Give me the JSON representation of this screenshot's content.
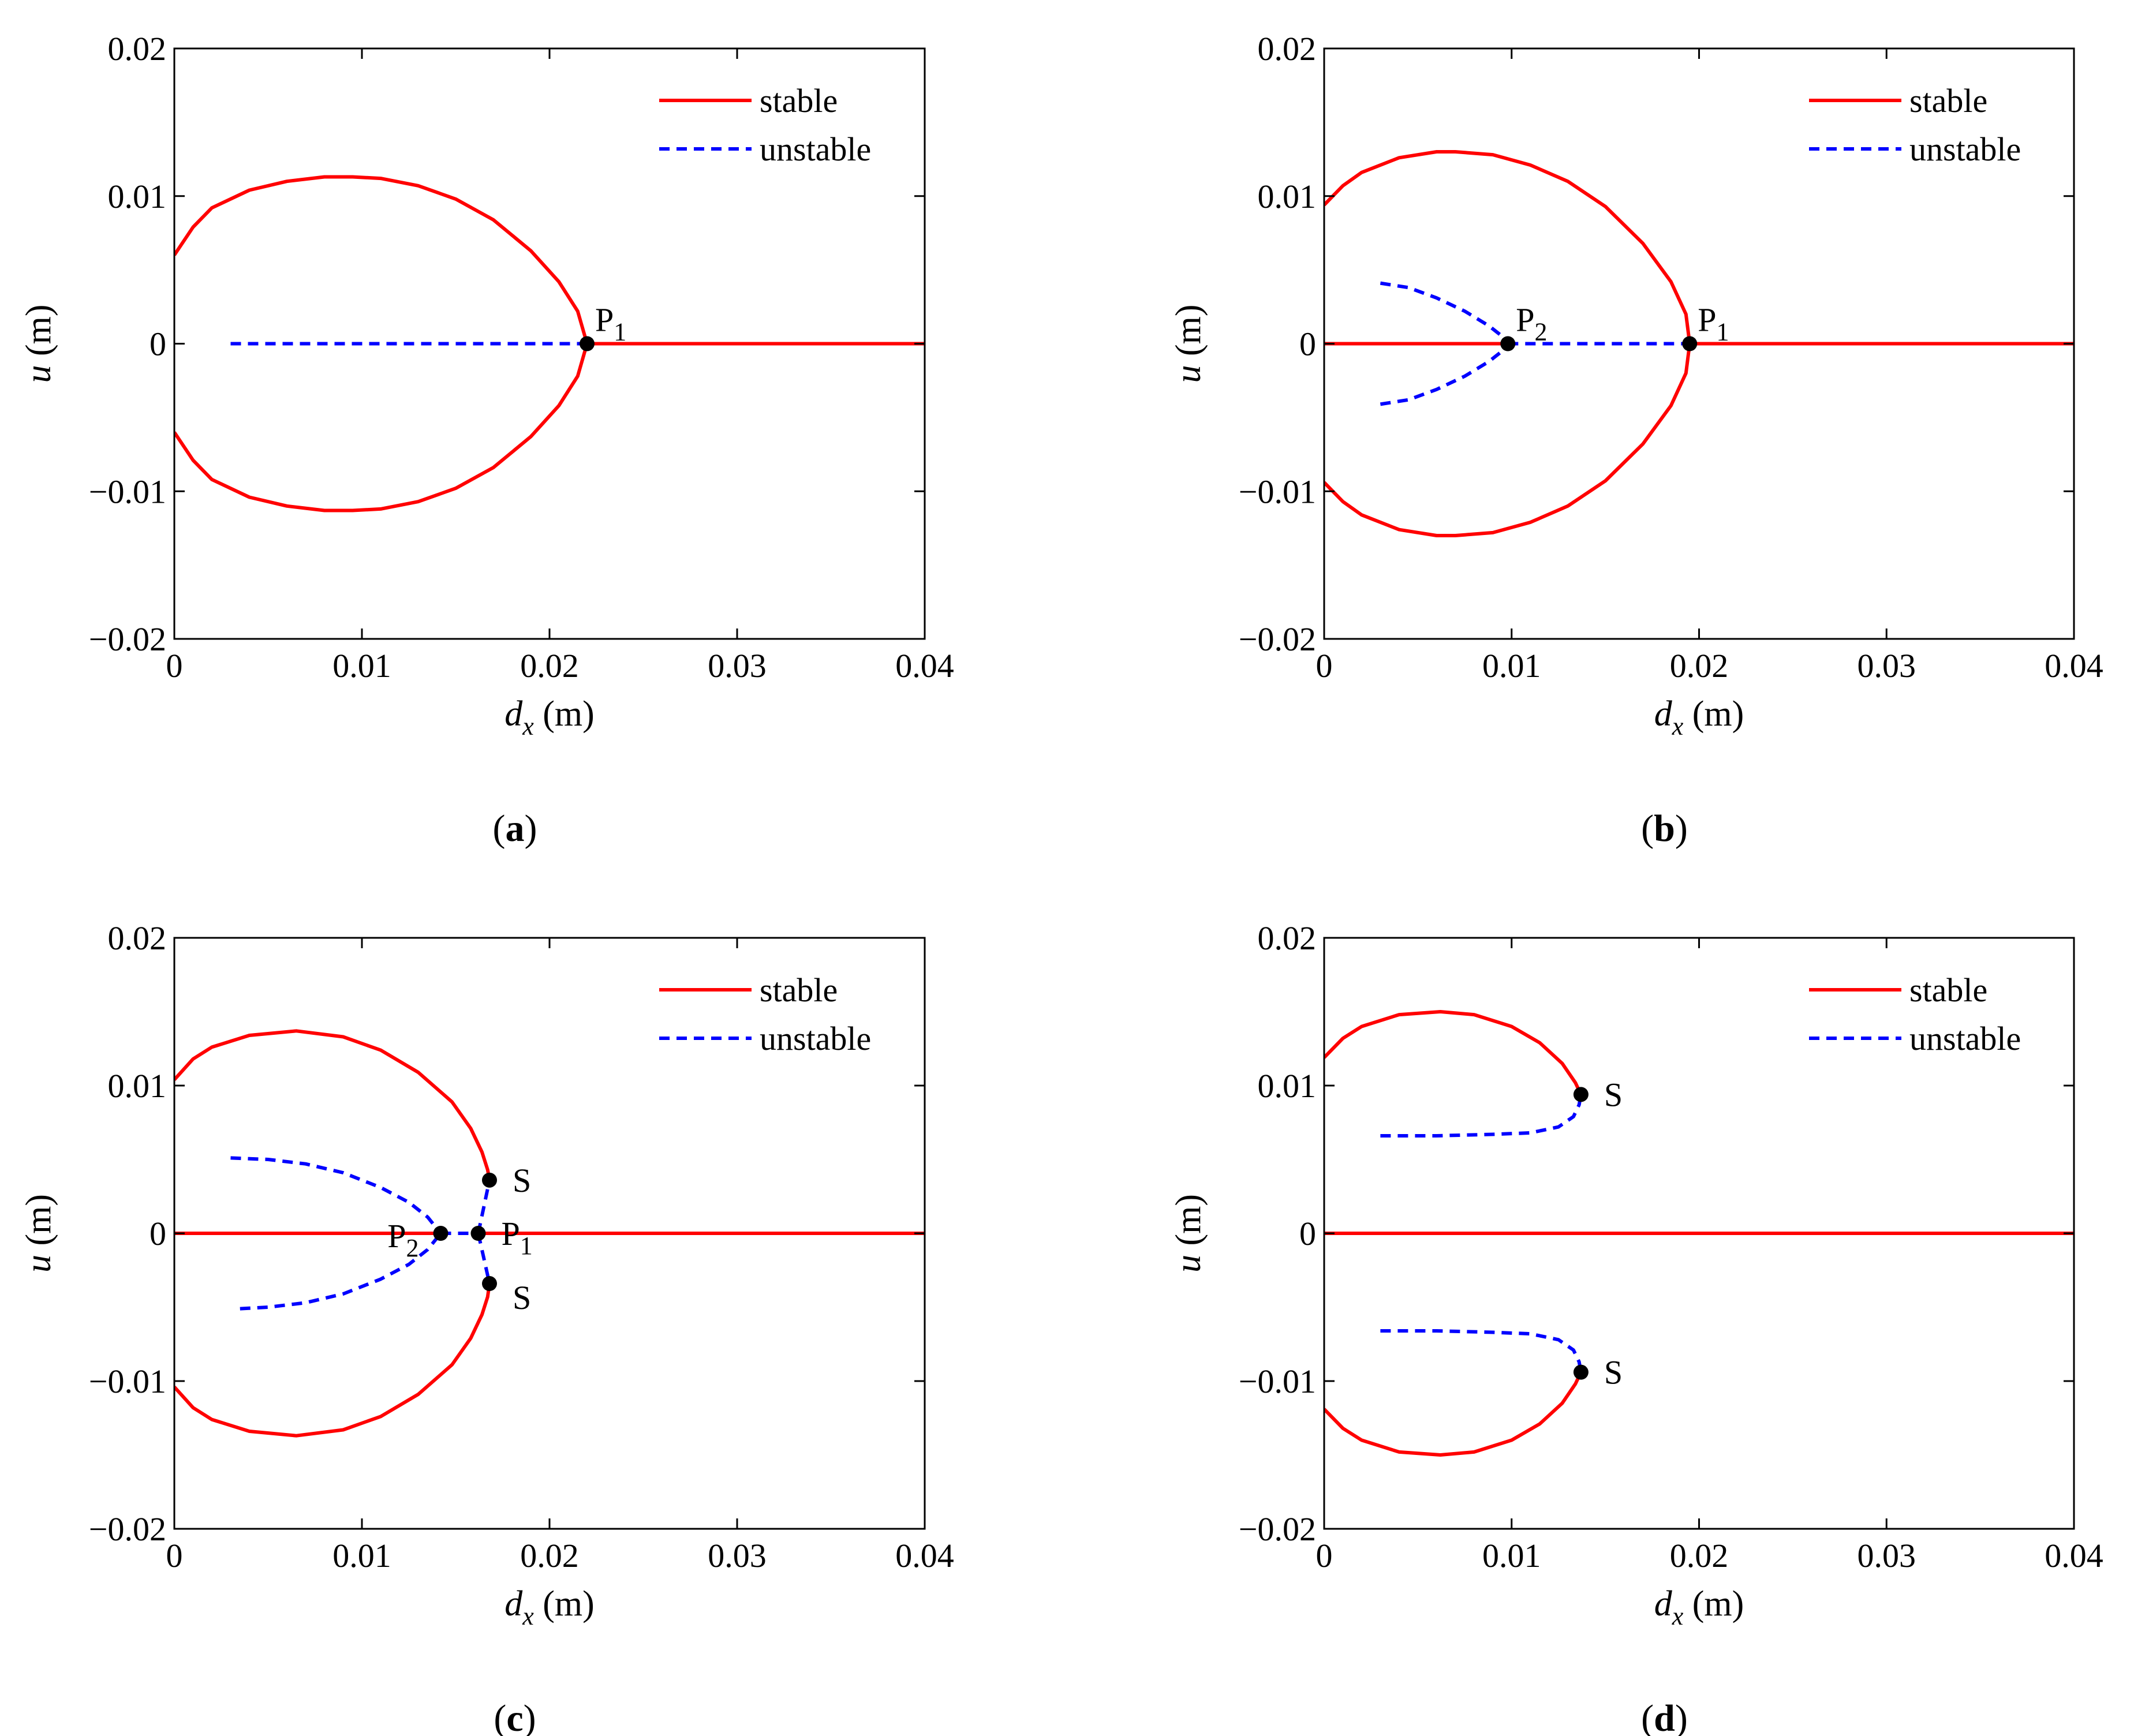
{
  "colors": {
    "stable": "#ff0000",
    "unstable": "#0000ff",
    "point": "#000000"
  },
  "chart_data": [
    {
      "type": "line",
      "panel_label": "a",
      "xlabel_var": "d",
      "xlabel_sub": "x",
      "xlabel_unit": " (m)",
      "ylabel_var": "u",
      "ylabel_unit": " (m)",
      "xlim": [
        0,
        0.04
      ],
      "ylim": [
        -0.02,
        0.02
      ],
      "xticks": [
        0,
        0.01,
        0.02,
        0.03,
        0.04
      ],
      "xtick_labels": [
        "0",
        "0.01",
        "0.02",
        "0.03",
        "0.04"
      ],
      "yticks": [
        -0.02,
        -0.01,
        0,
        0.01,
        0.02
      ],
      "ytick_labels": [
        "−0.02",
        "−0.01",
        "0",
        "0.01",
        "0.02"
      ],
      "legend": [
        {
          "label": "stable",
          "style": "stable"
        },
        {
          "label": "unstable",
          "style": "unstable"
        }
      ],
      "series": [
        {
          "name": "stable",
          "style": "stable",
          "x": [
            0,
            0.001,
            0.002,
            0.004,
            0.006,
            0.008,
            0.0095,
            0.011,
            0.013,
            0.015,
            0.017,
            0.019,
            0.0205,
            0.0215,
            0.022
          ],
          "y": [
            0.006,
            0.0079,
            0.0092,
            0.0104,
            0.011,
            0.0113,
            0.0113,
            0.0112,
            0.0107,
            0.0098,
            0.0084,
            0.0063,
            0.0042,
            0.0022,
            0
          ]
        },
        {
          "name": "stable",
          "style": "stable",
          "x": [
            0,
            0.001,
            0.002,
            0.004,
            0.006,
            0.008,
            0.0095,
            0.011,
            0.013,
            0.015,
            0.017,
            0.019,
            0.0205,
            0.0215,
            0.022
          ],
          "y": [
            -0.006,
            -0.0079,
            -0.0092,
            -0.0104,
            -0.011,
            -0.0113,
            -0.0113,
            -0.0112,
            -0.0107,
            -0.0098,
            -0.0084,
            -0.0063,
            -0.0042,
            -0.0022,
            0
          ]
        },
        {
          "name": "stable",
          "style": "stable",
          "x": [
            0.022,
            0.04
          ],
          "y": [
            0,
            0
          ]
        },
        {
          "name": "unstable",
          "style": "unstable",
          "x": [
            0.003,
            0.022
          ],
          "y": [
            0,
            0
          ]
        }
      ],
      "points": [
        {
          "x": 0.022,
          "y": 0,
          "label": "P",
          "sub": "1",
          "pos": "above-right"
        }
      ]
    },
    {
      "type": "line",
      "panel_label": "b",
      "xlabel_var": "d",
      "xlabel_sub": "x",
      "xlabel_unit": " (m)",
      "ylabel_var": "u",
      "ylabel_unit": " (m)",
      "xlim": [
        0,
        0.04
      ],
      "ylim": [
        -0.02,
        0.02
      ],
      "xticks": [
        0,
        0.01,
        0.02,
        0.03,
        0.04
      ],
      "xtick_labels": [
        "0",
        "0.01",
        "0.02",
        "0.03",
        "0.04"
      ],
      "yticks": [
        -0.02,
        -0.01,
        0,
        0.01,
        0.02
      ],
      "ytick_labels": [
        "−0.02",
        "−0.01",
        "0",
        "0.01",
        "0.02"
      ],
      "legend": [
        {
          "label": "stable",
          "style": "stable"
        },
        {
          "label": "unstable",
          "style": "unstable"
        }
      ],
      "series": [
        {
          "name": "stable",
          "style": "stable",
          "x": [
            0,
            0.001,
            0.002,
            0.004,
            0.006,
            0.007,
            0.009,
            0.011,
            0.013,
            0.015,
            0.017,
            0.0185,
            0.0193,
            0.0195
          ],
          "y": [
            0.0094,
            0.0107,
            0.0116,
            0.0126,
            0.013,
            0.013,
            0.0128,
            0.0121,
            0.011,
            0.0093,
            0.0068,
            0.0042,
            0.002,
            0
          ]
        },
        {
          "name": "stable",
          "style": "stable",
          "x": [
            0,
            0.001,
            0.002,
            0.004,
            0.006,
            0.007,
            0.009,
            0.011,
            0.013,
            0.015,
            0.017,
            0.0185,
            0.0193,
            0.0195
          ],
          "y": [
            -0.0094,
            -0.0107,
            -0.0116,
            -0.0126,
            -0.013,
            -0.013,
            -0.0128,
            -0.0121,
            -0.011,
            -0.0093,
            -0.0068,
            -0.0042,
            -0.002,
            0
          ]
        },
        {
          "name": "stable",
          "style": "stable",
          "x": [
            0,
            0.0098
          ],
          "y": [
            0,
            0
          ]
        },
        {
          "name": "stable",
          "style": "stable",
          "x": [
            0.0195,
            0.04
          ],
          "y": [
            0,
            0
          ]
        },
        {
          "name": "unstable",
          "style": "unstable",
          "x": [
            0.0098,
            0.0195
          ],
          "y": [
            0,
            0
          ]
        },
        {
          "name": "unstable",
          "style": "unstable",
          "x": [
            0.003,
            0.0045,
            0.006,
            0.0075,
            0.0088,
            0.0095,
            0.0098
          ],
          "y": [
            0.0041,
            0.0038,
            0.0031,
            0.0022,
            0.0012,
            0.0005,
            0
          ]
        },
        {
          "name": "unstable",
          "style": "unstable",
          "x": [
            0.003,
            0.0045,
            0.006,
            0.0075,
            0.0088,
            0.0095,
            0.0098
          ],
          "y": [
            -0.0041,
            -0.0038,
            -0.0031,
            -0.0022,
            -0.0012,
            -0.0005,
            0
          ]
        }
      ],
      "points": [
        {
          "x": 0.0098,
          "y": 0,
          "label": "P",
          "sub": "2",
          "pos": "above-right"
        },
        {
          "x": 0.0195,
          "y": 0,
          "label": "P",
          "sub": "1",
          "pos": "above-right"
        }
      ]
    },
    {
      "type": "line",
      "panel_label": "c",
      "xlabel_var": "d",
      "xlabel_sub": "x",
      "xlabel_unit": " (m)",
      "ylabel_var": "u",
      "ylabel_unit": " (m)",
      "xlim": [
        0,
        0.04
      ],
      "ylim": [
        -0.02,
        0.02
      ],
      "xticks": [
        0,
        0.01,
        0.02,
        0.03,
        0.04
      ],
      "xtick_labels": [
        "0",
        "0.01",
        "0.02",
        "0.03",
        "0.04"
      ],
      "yticks": [
        -0.02,
        -0.01,
        0,
        0.01,
        0.02
      ],
      "ytick_labels": [
        "−0.02",
        "−0.01",
        "0",
        "0.01",
        "0.02"
      ],
      "legend": [
        {
          "label": "stable",
          "style": "stable"
        },
        {
          "label": "unstable",
          "style": "unstable"
        }
      ],
      "series": [
        {
          "name": "stable",
          "style": "stable",
          "x": [
            0,
            0.001,
            0.002,
            0.004,
            0.0065,
            0.009,
            0.011,
            0.013,
            0.0148,
            0.0158,
            0.0164,
            0.0167,
            0.0168
          ],
          "y": [
            0.0104,
            0.0118,
            0.0126,
            0.0134,
            0.0137,
            0.0133,
            0.0124,
            0.0109,
            0.0089,
            0.0071,
            0.0055,
            0.0043,
            0.0036
          ]
        },
        {
          "name": "stable",
          "style": "stable",
          "x": [
            0,
            0.001,
            0.002,
            0.004,
            0.0065,
            0.009,
            0.011,
            0.013,
            0.0148,
            0.0158,
            0.0164,
            0.0167,
            0.0168
          ],
          "y": [
            -0.0104,
            -0.0118,
            -0.0126,
            -0.0134,
            -0.0137,
            -0.0133,
            -0.0124,
            -0.0109,
            -0.0089,
            -0.0071,
            -0.0055,
            -0.0043,
            -0.0034
          ]
        },
        {
          "name": "stable",
          "style": "stable",
          "x": [
            0,
            0.0142
          ],
          "y": [
            0,
            0
          ]
        },
        {
          "name": "stable",
          "style": "stable",
          "x": [
            0.0162,
            0.04
          ],
          "y": [
            0,
            0
          ]
        },
        {
          "name": "unstable",
          "style": "unstable",
          "x": [
            0.0142,
            0.0162
          ],
          "y": [
            0,
            0
          ]
        },
        {
          "name": "unstable",
          "style": "unstable",
          "x": [
            0.0162,
            0.0165,
            0.0168
          ],
          "y": [
            0,
            0.0018,
            0.0036
          ]
        },
        {
          "name": "unstable",
          "style": "unstable",
          "x": [
            0.0162,
            0.0165,
            0.0168
          ],
          "y": [
            0,
            -0.0017,
            -0.0034
          ]
        },
        {
          "name": "unstable",
          "style": "unstable",
          "x": [
            0.003,
            0.005,
            0.007,
            0.009,
            0.011,
            0.0125,
            0.0135,
            0.0142
          ],
          "y": [
            0.0051,
            0.005,
            0.0047,
            0.0041,
            0.0031,
            0.0021,
            0.0011,
            0
          ]
        },
        {
          "name": "unstable",
          "style": "unstable",
          "x": [
            0.0035,
            0.005,
            0.007,
            0.009,
            0.011,
            0.0125,
            0.0135,
            0.0142
          ],
          "y": [
            -0.0051,
            -0.005,
            -0.0047,
            -0.0041,
            -0.0031,
            -0.0021,
            -0.0011,
            0
          ]
        }
      ],
      "points": [
        {
          "x": 0.0142,
          "y": 0,
          "label": "P",
          "sub": "2",
          "pos": "left"
        },
        {
          "x": 0.0162,
          "y": 0,
          "label": "P",
          "sub": "1",
          "pos": "right"
        },
        {
          "x": 0.0168,
          "y": 0.0036,
          "label": "S",
          "sub": "",
          "pos": "right"
        },
        {
          "x": 0.0168,
          "y": -0.0034,
          "label": "S",
          "sub": "",
          "pos": "below-right"
        }
      ]
    },
    {
      "type": "line",
      "panel_label": "d",
      "xlabel_var": "d",
      "xlabel_sub": "x",
      "xlabel_unit": " (m)",
      "ylabel_var": "u",
      "ylabel_unit": " (m)",
      "xlim": [
        0,
        0.04
      ],
      "ylim": [
        -0.02,
        0.02
      ],
      "xticks": [
        0,
        0.01,
        0.02,
        0.03,
        0.04
      ],
      "xtick_labels": [
        "0",
        "0.01",
        "0.02",
        "0.03",
        "0.04"
      ],
      "yticks": [
        -0.02,
        -0.01,
        0,
        0.01,
        0.02
      ],
      "ytick_labels": [
        "−0.02",
        "−0.01",
        "0",
        "0.01",
        "0.02"
      ],
      "legend": [
        {
          "label": "stable",
          "style": "stable"
        },
        {
          "label": "unstable",
          "style": "unstable"
        }
      ],
      "series": [
        {
          "name": "stable",
          "style": "stable",
          "x": [
            0,
            0.001,
            0.002,
            0.004,
            0.0062,
            0.008,
            0.01,
            0.0115,
            0.0127,
            0.0134,
            0.0137
          ],
          "y": [
            0.0119,
            0.0132,
            0.014,
            0.0148,
            0.015,
            0.0148,
            0.014,
            0.0129,
            0.0115,
            0.0102,
            0.0094
          ]
        },
        {
          "name": "stable",
          "style": "stable",
          "x": [
            0,
            0.001,
            0.002,
            0.004,
            0.0062,
            0.008,
            0.01,
            0.0115,
            0.0127,
            0.0134,
            0.0137
          ],
          "y": [
            -0.0119,
            -0.0132,
            -0.014,
            -0.0148,
            -0.015,
            -0.0148,
            -0.014,
            -0.0129,
            -0.0115,
            -0.0102,
            -0.0094
          ]
        },
        {
          "name": "stable",
          "style": "stable",
          "x": [
            0,
            0.04
          ],
          "y": [
            0,
            0
          ]
        },
        {
          "name": "unstable",
          "style": "unstable",
          "x": [
            0.003,
            0.006,
            0.009,
            0.011,
            0.0125,
            0.0133,
            0.0136,
            0.0137
          ],
          "y": [
            0.0066,
            0.0066,
            0.0067,
            0.0068,
            0.0072,
            0.0079,
            0.0087,
            0.0094
          ]
        },
        {
          "name": "unstable",
          "style": "unstable",
          "x": [
            0.003,
            0.006,
            0.009,
            0.011,
            0.0125,
            0.0133,
            0.0136,
            0.0137
          ],
          "y": [
            -0.0066,
            -0.0066,
            -0.0067,
            -0.0068,
            -0.0072,
            -0.0079,
            -0.0087,
            -0.0094
          ]
        }
      ],
      "points": [
        {
          "x": 0.0137,
          "y": 0.0094,
          "label": "S",
          "sub": "",
          "pos": "right"
        },
        {
          "x": 0.0137,
          "y": -0.0094,
          "label": "S",
          "sub": "",
          "pos": "right"
        }
      ]
    }
  ]
}
